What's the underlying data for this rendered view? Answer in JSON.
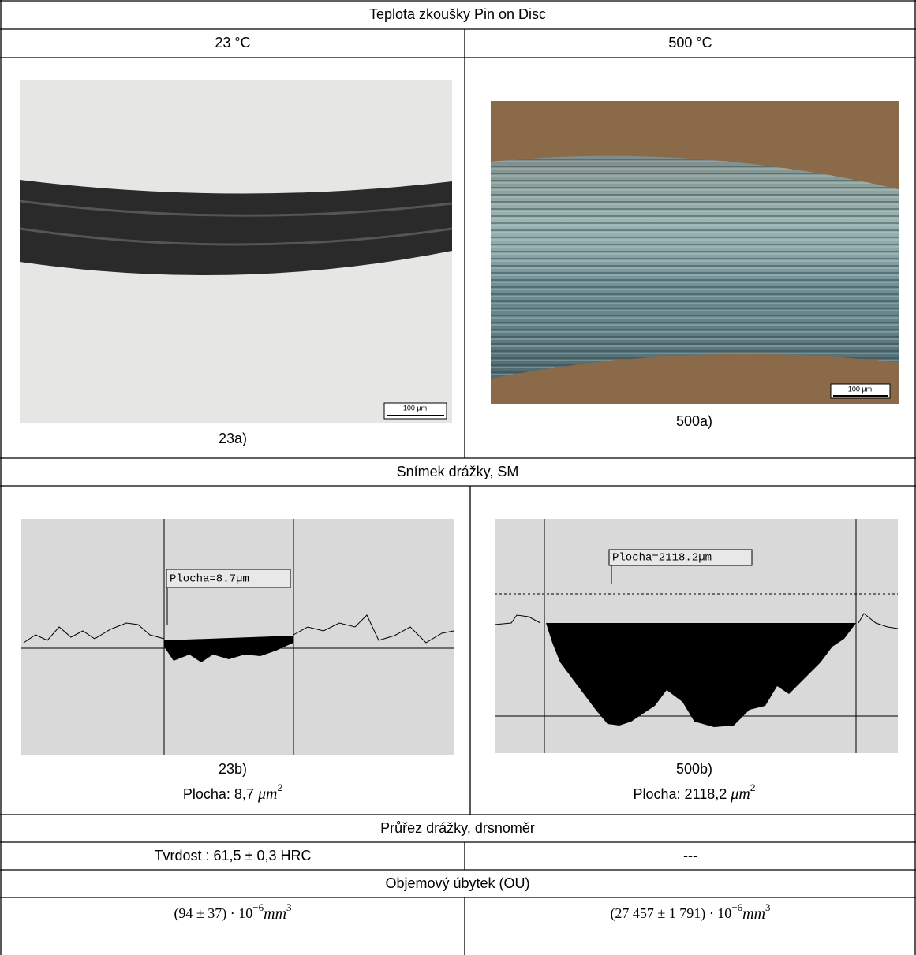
{
  "header": {
    "title": "Teplota zkoušky Pin on Disc",
    "columns": [
      "23 °C",
      "500 °C"
    ]
  },
  "micrographs": [
    {
      "scale_bar": "100 µm",
      "caption": "23a)"
    },
    {
      "scale_bar": "100 µm",
      "caption": "500a)"
    }
  ],
  "section_profile": "Snímek drážky, SM",
  "profiles": [
    {
      "annotation": "Plocha=8.7µm",
      "caption": "23b)",
      "area_label": "Plocha: 8,7",
      "area_unit": "μm",
      "area_exponent": "2"
    },
    {
      "annotation": "Plocha=2118.2µm",
      "caption": "500b)",
      "area_label": "Plocha: 2118,2",
      "area_unit": "μm",
      "area_exponent": "2"
    }
  ],
  "section_cross": "Průřez drážky, drsnoměr",
  "hardness": [
    "Tvrdost : 61,5 ± 0,3 HRC",
    "---"
  ],
  "section_volume": "Objemový úbytek (OU)",
  "volume_loss": [
    {
      "base": "(94 ± 37) · 10",
      "exponent": "−6",
      "unit": "mm",
      "unit_exponent": "3"
    },
    {
      "base": "(27 457 ± 1 791) · 10",
      "exponent": "−6",
      "unit": "mm",
      "unit_exponent": "3"
    }
  ]
}
